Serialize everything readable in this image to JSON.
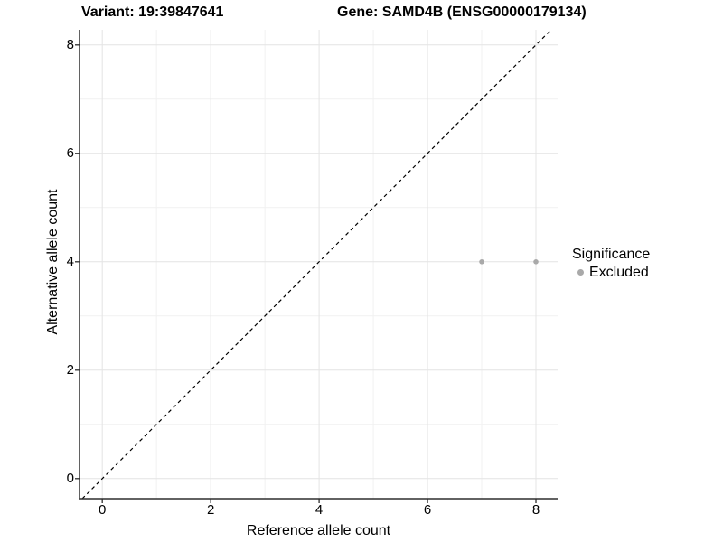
{
  "titles": {
    "variant": "Variant: 19:39847641",
    "gene": "Gene: SAMD4B (ENSG00000179134)"
  },
  "chart_data": {
    "type": "scatter",
    "title": "Variant: 19:39847641   Gene: SAMD4B (ENSG00000179134)",
    "xlabel": "Reference allele count",
    "ylabel": "Alternative allele count",
    "xlim": [
      -0.42,
      8.4
    ],
    "ylim": [
      -0.37,
      8.28
    ],
    "x_major_ticks": [
      0,
      2,
      4,
      6,
      8
    ],
    "y_major_ticks": [
      0,
      2,
      4,
      6,
      8
    ],
    "x_minor_gridlines": [
      1,
      3,
      5,
      7
    ],
    "y_minor_gridlines": [
      1,
      3,
      5,
      7
    ],
    "grid": true,
    "series": [
      {
        "name": "Excluded",
        "points": [
          {
            "x": 7,
            "y": 4
          },
          {
            "x": 8,
            "y": 4
          }
        ],
        "color": "#a9a9a9"
      }
    ],
    "reference_line": {
      "type": "identity",
      "style": "dashed",
      "color": "#000000"
    },
    "legend": {
      "title": "Significance",
      "position": "right",
      "entries": [
        {
          "label": "Excluded",
          "color": "#a9a9a9"
        }
      ]
    },
    "colors": {
      "background": "#ffffff",
      "grid_major": "#e4e4e4",
      "grid_minor": "#f1f1f1",
      "axis_line": "#2e2e2e",
      "text": "#000000"
    }
  }
}
